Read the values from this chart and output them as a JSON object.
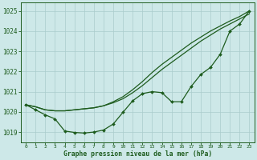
{
  "xlabel": "Graphe pression niveau de la mer (hPa)",
  "bg_color": "#cde8e8",
  "grid_color": "#aacccc",
  "line_color": "#1e5c1e",
  "xlim_min": -0.5,
  "xlim_max": 23.5,
  "ylim_min": 1018.5,
  "ylim_max": 1025.4,
  "yticks": [
    1019,
    1020,
    1021,
    1022,
    1023,
    1024,
    1025
  ],
  "xticks": [
    0,
    1,
    2,
    3,
    4,
    5,
    6,
    7,
    8,
    9,
    10,
    11,
    12,
    13,
    14,
    15,
    16,
    17,
    18,
    19,
    20,
    21,
    22,
    23
  ],
  "series_smooth1": [
    1020.35,
    1020.25,
    1020.1,
    1020.05,
    1020.05,
    1020.1,
    1020.15,
    1020.2,
    1020.3,
    1020.45,
    1020.65,
    1020.95,
    1021.3,
    1021.7,
    1022.1,
    1022.45,
    1022.8,
    1023.15,
    1023.5,
    1023.8,
    1024.1,
    1024.35,
    1024.6,
    1024.85
  ],
  "series_smooth2": [
    1020.35,
    1020.25,
    1020.1,
    1020.05,
    1020.05,
    1020.1,
    1020.15,
    1020.2,
    1020.3,
    1020.5,
    1020.75,
    1021.1,
    1021.5,
    1021.95,
    1022.35,
    1022.7,
    1023.05,
    1023.4,
    1023.7,
    1024.0,
    1024.25,
    1024.5,
    1024.72,
    1025.0
  ],
  "series_wavy": [
    1020.35,
    1020.1,
    1019.85,
    1019.65,
    1019.05,
    1018.98,
    1018.95,
    1019.0,
    1019.1,
    1019.4,
    1019.98,
    1020.55,
    1020.9,
    1021.0,
    1020.95,
    1020.5,
    1020.5,
    1021.25,
    1021.85,
    1022.2,
    1022.85,
    1024.0,
    1024.35,
    1025.0
  ]
}
